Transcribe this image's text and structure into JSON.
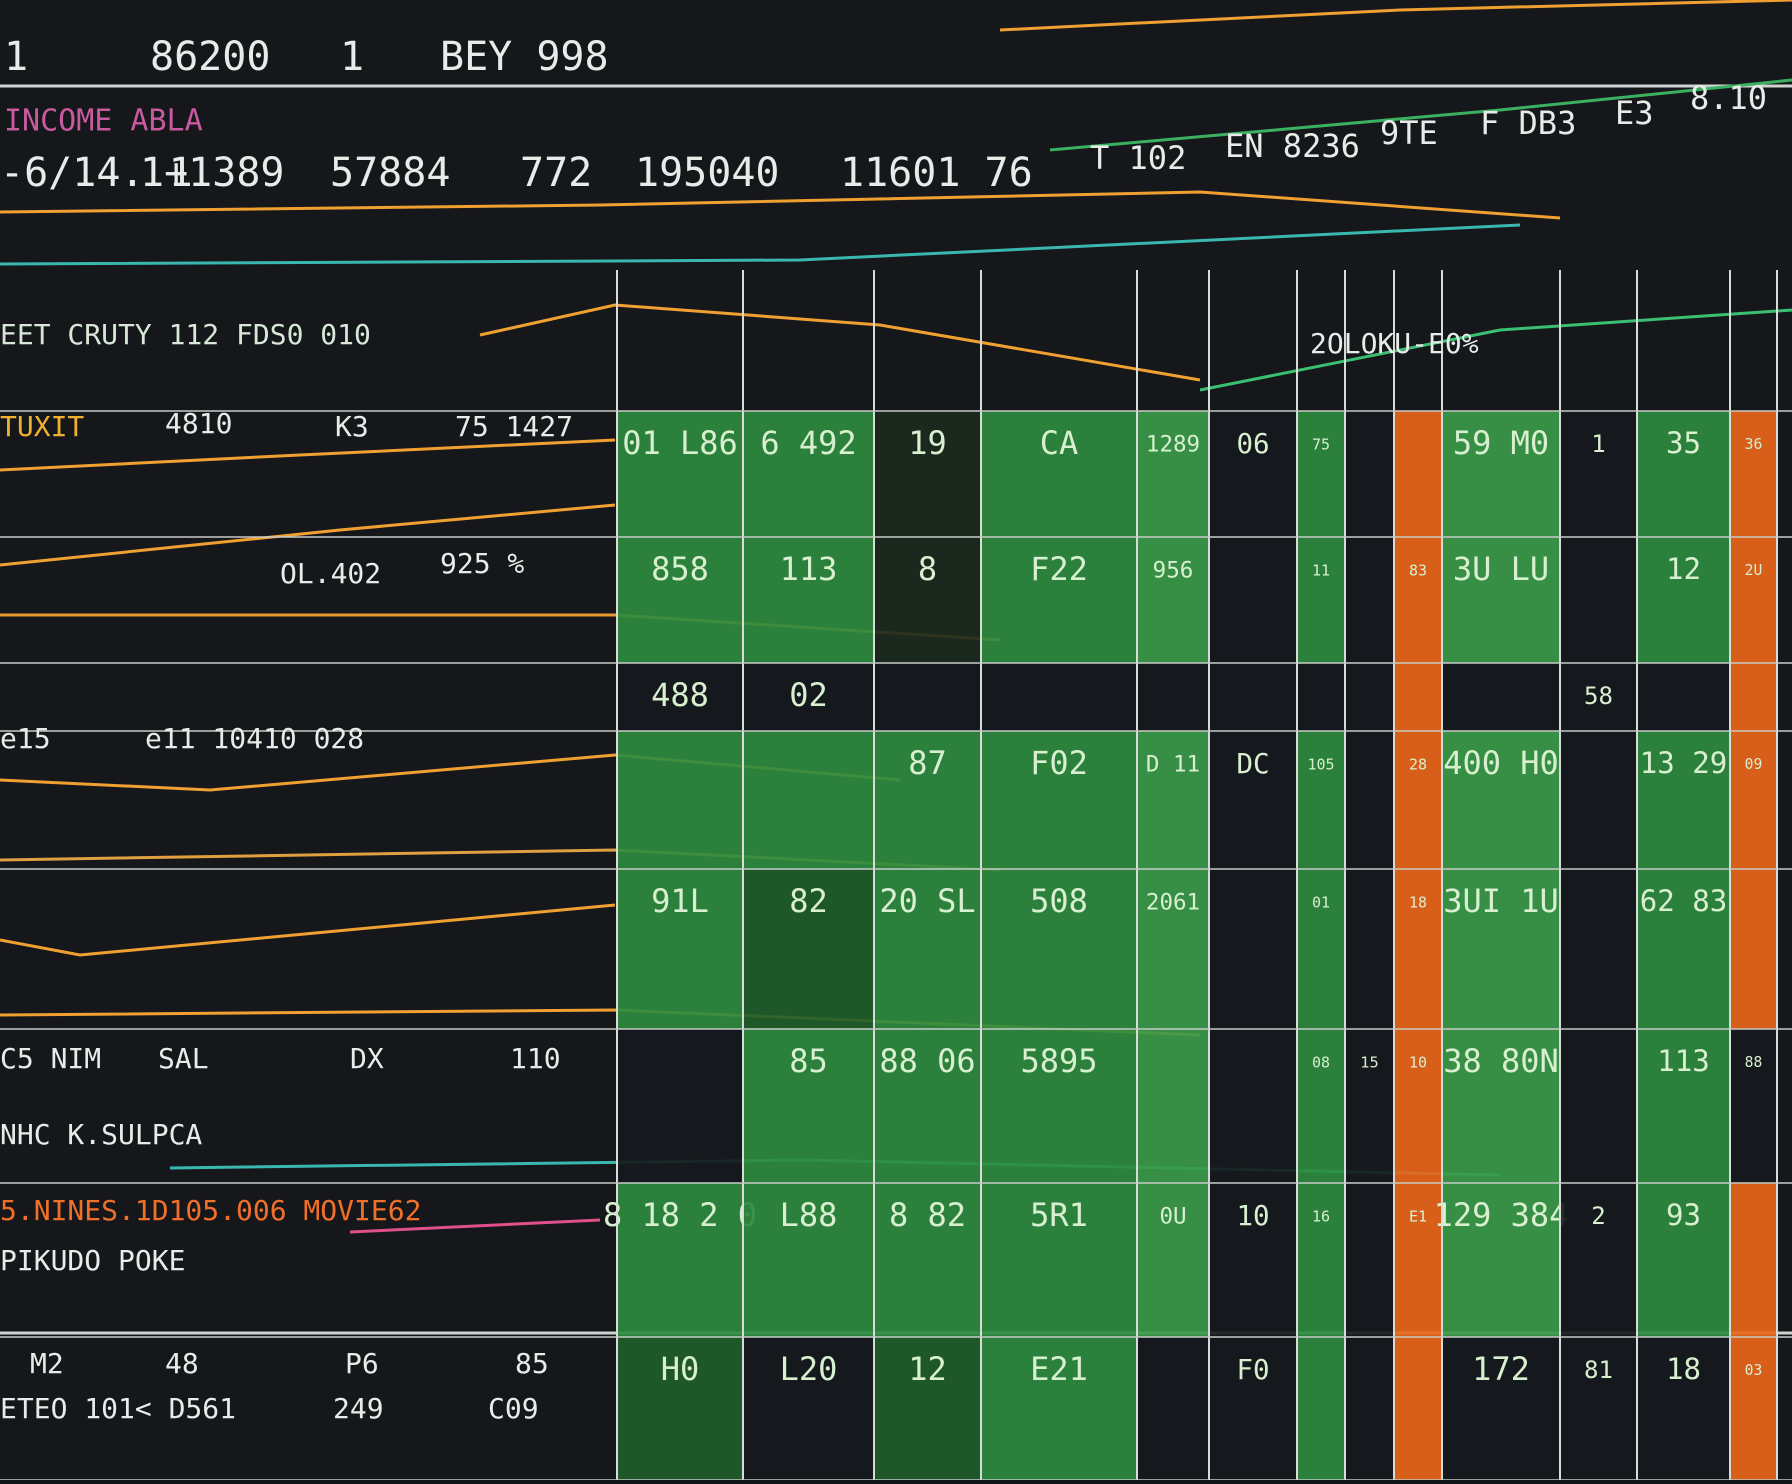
{
  "header": {
    "line1": [
      "1",
      "86200",
      "1",
      "BEY 998"
    ],
    "section": "INCOME ABLA",
    "ticker": [
      "-6/14. 1",
      "1+1389",
      "57884",
      "772",
      "195040",
      "11601 76",
      "T 102",
      "EN 8236",
      "9TE",
      "F DB3",
      "E3",
      "8.10"
    ]
  },
  "panel": {
    "labels": [
      "EET CRUTY 112 FDS0 010",
      "TUXIT",
      "4810",
      "K3",
      "75 1427",
      "OL.402",
      "925 %",
      "e15",
      "e11 10410 028",
      "5.NINES.1D105.006 MOVIE62",
      "PIKUDO POKE",
      "M2",
      "48",
      "P6",
      "85",
      "ETEO 101< D561",
      "249",
      "C09",
      "C5 NIM",
      "SAL",
      "DX",
      "110",
      "NHC K.SULPCA",
      "2OLOKU-E0%"
    ]
  },
  "board": {
    "rows": [
      [
        {
          "text": "01 L86",
          "color": "#2e8b3e"
        },
        {
          "text": "6 492",
          "color": "#2e8b3e"
        },
        {
          "text": "19",
          "color": "#1b2a1e"
        },
        {
          "text": "CA",
          "color": "#2e8b3e"
        },
        {
          "text": "1289",
          "color": "#3a9a48"
        },
        {
          "text": "06",
          "color": "#16191c"
        },
        {
          "text": "75",
          "color": "#2e8b3e"
        },
        {
          "color": "#16191c"
        },
        {
          "color": "#e8661a"
        },
        {
          "text": "59 M0",
          "color": "#3a9a48"
        },
        {
          "text": "1",
          "color": "#16191c"
        },
        {
          "text": "35",
          "color": "#2e8b3e"
        },
        {
          "text": "36",
          "color": "#e8661a"
        }
      ],
      [
        {
          "text": "858",
          "color": "#2e8b3e"
        },
        {
          "text": "113",
          "color": "#2e8b3e"
        },
        {
          "text": "8",
          "color": "#1b2a1e"
        },
        {
          "text": "F22",
          "color": "#2e8b3e"
        },
        {
          "text": "956",
          "color": "#3a9a48"
        },
        {
          "color": "#16191c"
        },
        {
          "text": "11",
          "color": "#2e8b3e"
        },
        {
          "color": "#16191c"
        },
        {
          "text": "83",
          "color": "#e8661a"
        },
        {
          "text": "3U LU",
          "color": "#3a9a48"
        },
        {
          "color": "#16191c"
        },
        {
          "text": "12",
          "color": "#2e8b3e"
        },
        {
          "text": "2U",
          "color": "#e8661a"
        }
      ],
      [
        {
          "text": "488",
          "color": "#16191c"
        },
        {
          "text": "02",
          "color": "#16191c"
        },
        {
          "color": "#16191c"
        },
        {
          "color": "#16191c"
        },
        {
          "color": "#16191c"
        },
        {
          "color": "#16191c"
        },
        {
          "color": "#16191c"
        },
        {
          "color": "#16191c"
        },
        {
          "color": "#e8661a"
        },
        {
          "color": "#16191c"
        },
        {
          "text": "58",
          "color": "#16191c"
        },
        {
          "color": "#16191c"
        },
        {
          "color": "#e8661a"
        }
      ],
      [
        {
          "color": "#2e8b3e"
        },
        {
          "color": "#2e8b3e"
        },
        {
          "text": "87",
          "color": "#2e8b3e"
        },
        {
          "text": "F02",
          "color": "#2e8b3e"
        },
        {
          "text": "D 11",
          "color": "#3a9a48"
        },
        {
          "text": "DC",
          "color": "#16191c"
        },
        {
          "text": "105",
          "color": "#2e8b3e"
        },
        {
          "color": "#16191c"
        },
        {
          "text": "28",
          "color": "#e8661a"
        },
        {
          "text": "400 H0",
          "color": "#3a9a48"
        },
        {
          "color": "#16191c"
        },
        {
          "text": "13 29",
          "color": "#2e8b3e"
        },
        {
          "text": "09",
          "color": "#e8661a"
        }
      ],
      [
        {
          "text": "91L",
          "color": "#2e8b3e"
        },
        {
          "text": "82",
          "color": "#1f5e2a"
        },
        {
          "text": "20 SL",
          "color": "#2e8b3e"
        },
        {
          "text": "508",
          "color": "#2e8b3e"
        },
        {
          "text": "2061",
          "color": "#3a9a48"
        },
        {
          "color": "#16191c"
        },
        {
          "text": "01",
          "color": "#2e8b3e"
        },
        {
          "color": "#16191c"
        },
        {
          "text": "18",
          "color": "#e8661a"
        },
        {
          "text": "3UI 1U",
          "color": "#3a9a48"
        },
        {
          "color": "#16191c"
        },
        {
          "text": "62 83",
          "color": "#2e8b3e"
        },
        {
          "color": "#e8661a"
        }
      ],
      [
        {
          "color": "#16191c"
        },
        {
          "text": "85",
          "color": "#2e8b3e"
        },
        {
          "text": "88 06",
          "color": "#2e8b3e"
        },
        {
          "text": "5895",
          "color": "#2e8b3e"
        },
        {
          "color": "#3a9a48"
        },
        {
          "color": "#16191c"
        },
        {
          "text": "08",
          "color": "#2e8b3e"
        },
        {
          "text": "15",
          "color": "#16191c"
        },
        {
          "text": "10",
          "color": "#e8661a"
        },
        {
          "text": "38 80N",
          "color": "#3a9a48"
        },
        {
          "color": "#16191c"
        },
        {
          "text": "113",
          "color": "#2e8b3e"
        },
        {
          "text": "88",
          "color": "#16191c"
        }
      ],
      [
        {
          "text": "8 18 2 0",
          "color": "#2e8b3e"
        },
        {
          "text": "L88",
          "color": "#2e8b3e"
        },
        {
          "text": "8 82",
          "color": "#2e8b3e"
        },
        {
          "text": "5R1",
          "color": "#2e8b3e"
        },
        {
          "text": "0U",
          "color": "#3a9a48"
        },
        {
          "text": "10",
          "color": "#16191c"
        },
        {
          "text": "16",
          "color": "#2e8b3e"
        },
        {
          "color": "#16191c"
        },
        {
          "text": "E1",
          "color": "#e8661a"
        },
        {
          "text": "129 384",
          "color": "#3a9a48"
        },
        {
          "text": "2",
          "color": "#16191c"
        },
        {
          "text": "93",
          "color": "#2e8b3e"
        },
        {
          "color": "#e8661a"
        }
      ],
      [
        {
          "text": "H0",
          "color": "#1f5e2a"
        },
        {
          "text": "L20",
          "color": "#16191c"
        },
        {
          "text": "12",
          "color": "#1f5e2a"
        },
        {
          "text": "E21",
          "color": "#2e8b3e"
        },
        {
          "color": "#16191c"
        },
        {
          "text": "F0",
          "color": "#16191c"
        },
        {
          "color": "#2e8b3e"
        },
        {
          "color": "#16191c"
        },
        {
          "color": "#e8661a"
        },
        {
          "text": "172",
          "color": "#16191c"
        },
        {
          "text": "81",
          "color": "#16191c"
        },
        {
          "text": "18",
          "color": "#16191c"
        },
        {
          "text": "03",
          "color": "#e8661a"
        }
      ]
    ]
  }
}
